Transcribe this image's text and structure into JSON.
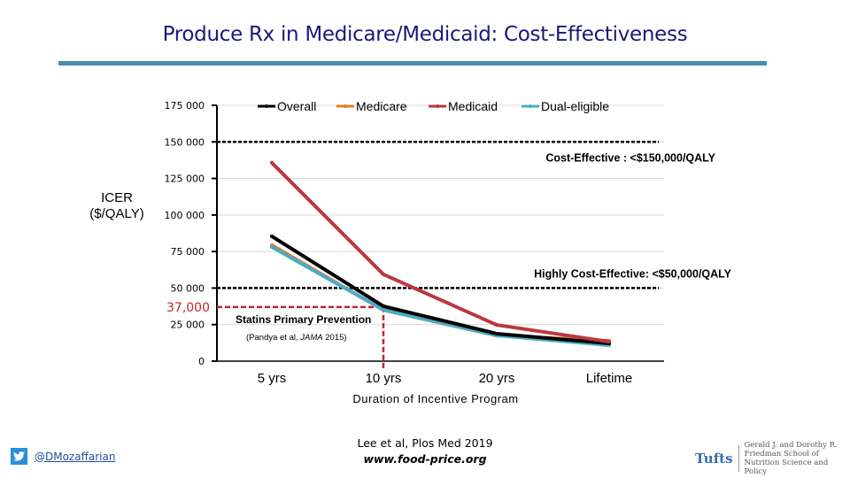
{
  "slide": {
    "title": "Produce Rx in Medicare/Medicaid:  Cost-Effectiveness",
    "footer": {
      "twitter_icon": "twitter-bird-icon",
      "handle": "@DMozaffarian",
      "citation_line1": "Lee et al, Plos Med 2019",
      "citation_line2": "www.food-price.org",
      "logo_brand": "Tufts",
      "logo_school_lines": [
        "Gerald J. and Dorothy R.",
        "Friedman School of",
        "Nutrition Science and Policy"
      ]
    }
  },
  "chart_data": {
    "type": "line",
    "title": "",
    "xlabel": "Duration of Incentive Program",
    "ylabel": "ICER ($/QALY)",
    "ylabel_lines": [
      "ICER",
      "($/QALY)"
    ],
    "ylim": [
      0,
      175000
    ],
    "yticks": [
      0,
      25000,
      50000,
      75000,
      100000,
      125000,
      150000,
      175000
    ],
    "ytick_labels": [
      "0",
      "25 000",
      "50 000",
      "75 000",
      "100 000",
      "125 000",
      "150 000",
      "175 000"
    ],
    "grid": true,
    "legend_position": "top",
    "categories": [
      "5 yrs",
      "10 yrs",
      "20 yrs",
      "Lifetime"
    ],
    "series": [
      {
        "name": "Overall",
        "color": "#000000",
        "values": [
          85400,
          37600,
          18800,
          12100
        ]
      },
      {
        "name": "Medicare",
        "color": "#e07b24",
        "values": [
          79300,
          35000,
          17500,
          13900
        ]
      },
      {
        "name": "Medicaid",
        "color": "#b83a3f",
        "values": [
          135700,
          59400,
          24800,
          13300
        ]
      },
      {
        "name": "Dual-eligible",
        "color": "#4bacc6",
        "values": [
          78100,
          35100,
          17600,
          10900
        ]
      }
    ],
    "reference_lines": [
      {
        "value": 150000,
        "label": "Cost-Effective :  <$150,000/QALY",
        "color": "#000000",
        "style": "dashed"
      },
      {
        "value": 50000,
        "label": "Highly Cost-Effective:  <$50,000/QALY",
        "color": "#000000",
        "style": "dashed"
      }
    ],
    "comparator": {
      "value": 37000,
      "value_label": "37,000",
      "at_category": "10 yrs",
      "color": "#c0262d",
      "label": "Statins Primary Prevention",
      "source_prefix": "(Pandya et al, ",
      "source_journal": "JAMA",
      "source_suffix": " 2015)"
    }
  }
}
